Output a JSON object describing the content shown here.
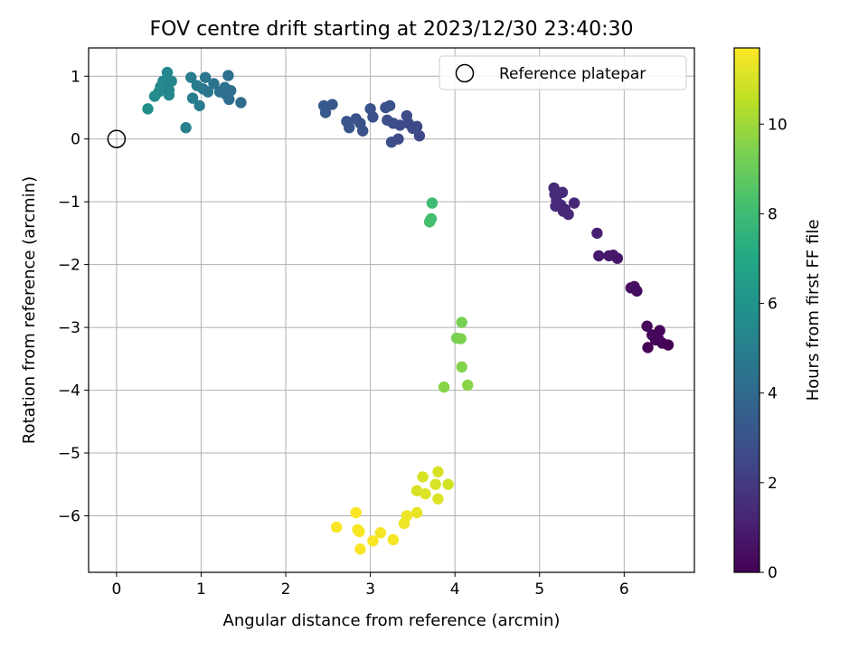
{
  "chart_data": {
    "type": "scatter",
    "title": "FOV centre drift starting at 2023/12/30 23:40:30",
    "xlabel": "Angular distance from reference (arcmin)",
    "ylabel": "Rotation from reference (arcmin)",
    "xlim": [
      -0.33,
      6.83
    ],
    "ylim": [
      -6.9,
      1.45
    ],
    "x_ticks": [
      0,
      1,
      2,
      3,
      4,
      5,
      6
    ],
    "y_ticks": [
      1,
      0,
      -1,
      -2,
      -3,
      -4,
      -5,
      -6
    ],
    "grid": true,
    "legend": {
      "placement": "top-right",
      "entries": [
        "Reference platepar"
      ]
    },
    "reference_point": {
      "x": 0,
      "y": 0
    },
    "colorbar": {
      "label": "Hours from first FF file",
      "range": [
        0,
        11.7
      ],
      "ticks": [
        0,
        2,
        4,
        6,
        8,
        10
      ],
      "colormap": "viridis"
    },
    "points": [
      {
        "x": 6.27,
        "y": -2.98,
        "h": 0.2
      },
      {
        "x": 6.42,
        "y": -3.05,
        "h": 0.2
      },
      {
        "x": 6.33,
        "y": -3.12,
        "h": 0.2
      },
      {
        "x": 6.37,
        "y": -3.2,
        "h": 0.1
      },
      {
        "x": 6.45,
        "y": -3.25,
        "h": 0.1
      },
      {
        "x": 6.52,
        "y": -3.28,
        "h": 0.0
      },
      {
        "x": 6.28,
        "y": -3.32,
        "h": 0.1
      },
      {
        "x": 6.4,
        "y": -3.17,
        "h": 0.2
      },
      {
        "x": 6.08,
        "y": -2.37,
        "h": 0.5
      },
      {
        "x": 6.12,
        "y": -2.35,
        "h": 0.5
      },
      {
        "x": 6.15,
        "y": -2.42,
        "h": 0.4
      },
      {
        "x": 5.68,
        "y": -1.5,
        "h": 1.0
      },
      {
        "x": 5.7,
        "y": -1.86,
        "h": 0.8
      },
      {
        "x": 5.82,
        "y": -1.86,
        "h": 0.8
      },
      {
        "x": 5.87,
        "y": -1.85,
        "h": 0.8
      },
      {
        "x": 5.92,
        "y": -1.9,
        "h": 0.7
      },
      {
        "x": 5.17,
        "y": -0.78,
        "h": 1.5
      },
      {
        "x": 5.18,
        "y": -0.88,
        "h": 1.5
      },
      {
        "x": 5.27,
        "y": -0.85,
        "h": 1.5
      },
      {
        "x": 5.2,
        "y": -0.98,
        "h": 1.4
      },
      {
        "x": 5.25,
        "y": -1.05,
        "h": 1.4
      },
      {
        "x": 5.19,
        "y": -1.07,
        "h": 1.4
      },
      {
        "x": 5.3,
        "y": -1.12,
        "h": 1.3
      },
      {
        "x": 5.34,
        "y": -1.2,
        "h": 1.3
      },
      {
        "x": 5.41,
        "y": -1.02,
        "h": 1.3
      },
      {
        "x": 5.28,
        "y": -1.15,
        "h": 1.3
      },
      {
        "x": 2.45,
        "y": 0.53,
        "h": 3.3
      },
      {
        "x": 2.47,
        "y": 0.42,
        "h": 3.3
      },
      {
        "x": 2.55,
        "y": 0.55,
        "h": 3.2
      },
      {
        "x": 2.72,
        "y": 0.28,
        "h": 3.1
      },
      {
        "x": 2.75,
        "y": 0.18,
        "h": 3.1
      },
      {
        "x": 2.83,
        "y": 0.32,
        "h": 3.0
      },
      {
        "x": 2.88,
        "y": 0.25,
        "h": 3.0
      },
      {
        "x": 2.91,
        "y": 0.13,
        "h": 3.0
      },
      {
        "x": 3.0,
        "y": 0.48,
        "h": 3.0
      },
      {
        "x": 3.03,
        "y": 0.35,
        "h": 2.9
      },
      {
        "x": 3.18,
        "y": 0.5,
        "h": 2.9
      },
      {
        "x": 3.23,
        "y": 0.53,
        "h": 2.9
      },
      {
        "x": 3.2,
        "y": 0.3,
        "h": 2.8
      },
      {
        "x": 3.27,
        "y": 0.25,
        "h": 2.8
      },
      {
        "x": 3.25,
        "y": -0.05,
        "h": 2.8
      },
      {
        "x": 3.33,
        "y": 0.0,
        "h": 2.7
      },
      {
        "x": 3.35,
        "y": 0.22,
        "h": 2.7
      },
      {
        "x": 3.43,
        "y": 0.37,
        "h": 2.7
      },
      {
        "x": 3.45,
        "y": 0.25,
        "h": 2.6
      },
      {
        "x": 3.5,
        "y": 0.17,
        "h": 2.6
      },
      {
        "x": 3.55,
        "y": 0.2,
        "h": 2.6
      },
      {
        "x": 3.58,
        "y": 0.05,
        "h": 2.5
      },
      {
        "x": 0.37,
        "y": 0.48,
        "h": 5.7
      },
      {
        "x": 0.45,
        "y": 0.68,
        "h": 5.6
      },
      {
        "x": 0.5,
        "y": 0.75,
        "h": 5.6
      },
      {
        "x": 0.52,
        "y": 0.83,
        "h": 5.5
      },
      {
        "x": 0.55,
        "y": 0.92,
        "h": 5.5
      },
      {
        "x": 0.6,
        "y": 1.06,
        "h": 5.4
      },
      {
        "x": 0.62,
        "y": 0.7,
        "h": 5.4
      },
      {
        "x": 0.62,
        "y": 0.78,
        "h": 5.3
      },
      {
        "x": 0.65,
        "y": 0.92,
        "h": 5.3
      },
      {
        "x": 0.82,
        "y": 0.18,
        "h": 5.0
      },
      {
        "x": 0.88,
        "y": 0.98,
        "h": 4.9
      },
      {
        "x": 0.9,
        "y": 0.65,
        "h": 4.9
      },
      {
        "x": 0.95,
        "y": 0.85,
        "h": 4.8
      },
      {
        "x": 0.98,
        "y": 0.53,
        "h": 4.8
      },
      {
        "x": 1.02,
        "y": 0.8,
        "h": 4.7
      },
      {
        "x": 1.05,
        "y": 0.98,
        "h": 4.6
      },
      {
        "x": 1.08,
        "y": 0.75,
        "h": 4.6
      },
      {
        "x": 1.15,
        "y": 0.88,
        "h": 4.5
      },
      {
        "x": 1.22,
        "y": 0.75,
        "h": 4.4
      },
      {
        "x": 1.28,
        "y": 0.82,
        "h": 4.4
      },
      {
        "x": 1.3,
        "y": 0.7,
        "h": 4.3
      },
      {
        "x": 1.32,
        "y": 1.01,
        "h": 4.3
      },
      {
        "x": 1.33,
        "y": 0.63,
        "h": 4.2
      },
      {
        "x": 1.35,
        "y": 0.77,
        "h": 4.2
      },
      {
        "x": 1.47,
        "y": 0.58,
        "h": 4.1
      },
      {
        "x": 3.73,
        "y": -1.02,
        "h": 8.0
      },
      {
        "x": 3.72,
        "y": -1.27,
        "h": 8.1
      },
      {
        "x": 3.7,
        "y": -1.32,
        "h": 8.2
      },
      {
        "x": 3.71,
        "y": -1.29,
        "h": 8.2
      },
      {
        "x": 4.08,
        "y": -2.92,
        "h": 9.3
      },
      {
        "x": 4.02,
        "y": -3.17,
        "h": 9.3
      },
      {
        "x": 4.07,
        "y": -3.18,
        "h": 9.4
      },
      {
        "x": 4.08,
        "y": -3.63,
        "h": 9.5
      },
      {
        "x": 3.87,
        "y": -3.95,
        "h": 9.6
      },
      {
        "x": 4.15,
        "y": -3.92,
        "h": 9.6
      },
      {
        "x": 3.8,
        "y": -5.3,
        "h": 11.0
      },
      {
        "x": 3.62,
        "y": -5.38,
        "h": 11.0
      },
      {
        "x": 3.77,
        "y": -5.5,
        "h": 11.0
      },
      {
        "x": 3.92,
        "y": -5.5,
        "h": 10.9
      },
      {
        "x": 3.55,
        "y": -5.6,
        "h": 11.0
      },
      {
        "x": 3.65,
        "y": -5.65,
        "h": 11.1
      },
      {
        "x": 3.8,
        "y": -5.73,
        "h": 11.1
      },
      {
        "x": 2.83,
        "y": -5.95,
        "h": 11.6
      },
      {
        "x": 3.55,
        "y": -5.95,
        "h": 11.3
      },
      {
        "x": 3.43,
        "y": -6.0,
        "h": 11.4
      },
      {
        "x": 3.4,
        "y": -6.12,
        "h": 11.4
      },
      {
        "x": 2.6,
        "y": -6.18,
        "h": 11.6
      },
      {
        "x": 2.85,
        "y": -6.22,
        "h": 11.6
      },
      {
        "x": 2.87,
        "y": -6.25,
        "h": 11.6
      },
      {
        "x": 3.12,
        "y": -6.27,
        "h": 11.5
      },
      {
        "x": 3.27,
        "y": -6.38,
        "h": 11.5
      },
      {
        "x": 3.03,
        "y": -6.4,
        "h": 11.6
      },
      {
        "x": 2.88,
        "y": -6.53,
        "h": 11.6
      }
    ]
  }
}
